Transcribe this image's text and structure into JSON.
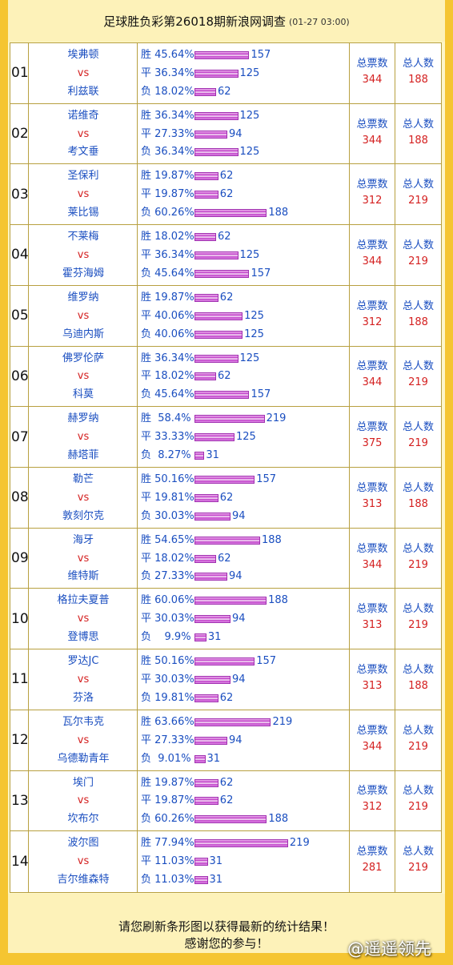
{
  "header": {
    "title": "足球胜负彩第26018期新浪网调查",
    "timestamp": "(01-27 03:00)"
  },
  "labels": {
    "ticket_count": "总票数",
    "user_count": "总人数",
    "vs": "vs"
  },
  "matches": [
    {
      "idx": "01",
      "home": "埃弗顿",
      "away": "利兹联",
      "odds": [
        {
          "label": "胜 45.64%",
          "count": 157,
          "pct": 45.64
        },
        {
          "label": "平 36.34%",
          "count": 125,
          "pct": 36.34
        },
        {
          "label": "负 18.02%",
          "count": 62,
          "pct": 18.02
        }
      ],
      "tickets": "344",
      "users": "188"
    },
    {
      "idx": "02",
      "home": "诺维奇",
      "away": "考文垂",
      "odds": [
        {
          "label": "胜 36.34%",
          "count": 125,
          "pct": 36.34
        },
        {
          "label": "平 27.33%",
          "count": 94,
          "pct": 27.33
        },
        {
          "label": "负 36.34%",
          "count": 125,
          "pct": 36.34
        }
      ],
      "tickets": "344",
      "users": "188"
    },
    {
      "idx": "03",
      "home": "圣保利",
      "away": "莱比锡",
      "odds": [
        {
          "label": "胜 19.87%",
          "count": 62,
          "pct": 19.87
        },
        {
          "label": "平 19.87%",
          "count": 62,
          "pct": 19.87
        },
        {
          "label": "负 60.26%",
          "count": 188,
          "pct": 60.26
        }
      ],
      "tickets": "312",
      "users": "219"
    },
    {
      "idx": "04",
      "home": "不莱梅",
      "away": "霍芬海姆",
      "odds": [
        {
          "label": "胜 18.02%",
          "count": 62,
          "pct": 18.02
        },
        {
          "label": "平 36.34%",
          "count": 125,
          "pct": 36.34
        },
        {
          "label": "负 45.64%",
          "count": 157,
          "pct": 45.64
        }
      ],
      "tickets": "344",
      "users": "219"
    },
    {
      "idx": "05",
      "home": "维罗纳",
      "away": "乌迪内斯",
      "odds": [
        {
          "label": "胜 19.87%",
          "count": 62,
          "pct": 19.87
        },
        {
          "label": "平 40.06%",
          "count": 125,
          "pct": 40.06
        },
        {
          "label": "负 40.06%",
          "count": 125,
          "pct": 40.06
        }
      ],
      "tickets": "312",
      "users": "188"
    },
    {
      "idx": "06",
      "home": "佛罗伦萨",
      "away": "科莫",
      "odds": [
        {
          "label": "胜 36.34%",
          "count": 125,
          "pct": 36.34
        },
        {
          "label": "平 18.02%",
          "count": 62,
          "pct": 18.02
        },
        {
          "label": "负 45.64%",
          "count": 157,
          "pct": 45.64
        }
      ],
      "tickets": "344",
      "users": "219"
    },
    {
      "idx": "07",
      "home": "赫罗纳",
      "away": "赫塔菲",
      "odds": [
        {
          "label": "胜  58.4%",
          "count": 219,
          "pct": 58.4
        },
        {
          "label": "平 33.33%",
          "count": 125,
          "pct": 33.33
        },
        {
          "label": "负  8.27%",
          "count": 31,
          "pct": 8.27
        }
      ],
      "tickets": "375",
      "users": "219"
    },
    {
      "idx": "08",
      "home": "勒芒",
      "away": "敦刻尔克",
      "odds": [
        {
          "label": "胜 50.16%",
          "count": 157,
          "pct": 50.16
        },
        {
          "label": "平 19.81%",
          "count": 62,
          "pct": 19.81
        },
        {
          "label": "负 30.03%",
          "count": 94,
          "pct": 30.03
        }
      ],
      "tickets": "313",
      "users": "188"
    },
    {
      "idx": "09",
      "home": "海牙",
      "away": "维特斯",
      "odds": [
        {
          "label": "胜 54.65%",
          "count": 188,
          "pct": 54.65
        },
        {
          "label": "平 18.02%",
          "count": 62,
          "pct": 18.02
        },
        {
          "label": "负 27.33%",
          "count": 94,
          "pct": 27.33
        }
      ],
      "tickets": "344",
      "users": "219"
    },
    {
      "idx": "10",
      "home": "格拉夫夏普",
      "away": "登博思",
      "odds": [
        {
          "label": "胜 60.06%",
          "count": 188,
          "pct": 60.06
        },
        {
          "label": "平 30.03%",
          "count": 94,
          "pct": 30.03
        },
        {
          "label": "负    9.9%",
          "count": 31,
          "pct": 9.9
        }
      ],
      "tickets": "313",
      "users": "219"
    },
    {
      "idx": "11",
      "home": "罗达JC",
      "away": "芬洛",
      "odds": [
        {
          "label": "胜 50.16%",
          "count": 157,
          "pct": 50.16
        },
        {
          "label": "平 30.03%",
          "count": 94,
          "pct": 30.03
        },
        {
          "label": "负 19.81%",
          "count": 62,
          "pct": 19.81
        }
      ],
      "tickets": "313",
      "users": "188"
    },
    {
      "idx": "12",
      "home": "瓦尔韦克",
      "away": "乌德勒青年",
      "odds": [
        {
          "label": "胜 63.66%",
          "count": 219,
          "pct": 63.66
        },
        {
          "label": "平 27.33%",
          "count": 94,
          "pct": 27.33
        },
        {
          "label": "负  9.01%",
          "count": 31,
          "pct": 9.01
        }
      ],
      "tickets": "344",
      "users": "219"
    },
    {
      "idx": "13",
      "home": "埃门",
      "away": "坎布尔",
      "odds": [
        {
          "label": "胜 19.87%",
          "count": 62,
          "pct": 19.87
        },
        {
          "label": "平 19.87%",
          "count": 62,
          "pct": 19.87
        },
        {
          "label": "负 60.26%",
          "count": 188,
          "pct": 60.26
        }
      ],
      "tickets": "312",
      "users": "219"
    },
    {
      "idx": "14",
      "home": "波尔图",
      "away": "吉尔维森特",
      "odds": [
        {
          "label": "胜 77.94%",
          "count": 219,
          "pct": 77.94
        },
        {
          "label": "平 11.03%",
          "count": 31,
          "pct": 11.03
        },
        {
          "label": "负 11.03%",
          "count": 31,
          "pct": 11.03
        }
      ],
      "tickets": "281",
      "users": "219"
    }
  ],
  "footer": {
    "line1": "请您刷新条形图以获得最新的统计结果！",
    "line2": "感谢您的参与！"
  },
  "watermark": "@遥遥领先",
  "colors": {
    "team": "#1a4ec0",
    "vs": "#d42020",
    "bar": "#c040c8",
    "background": "#f5c531"
  }
}
